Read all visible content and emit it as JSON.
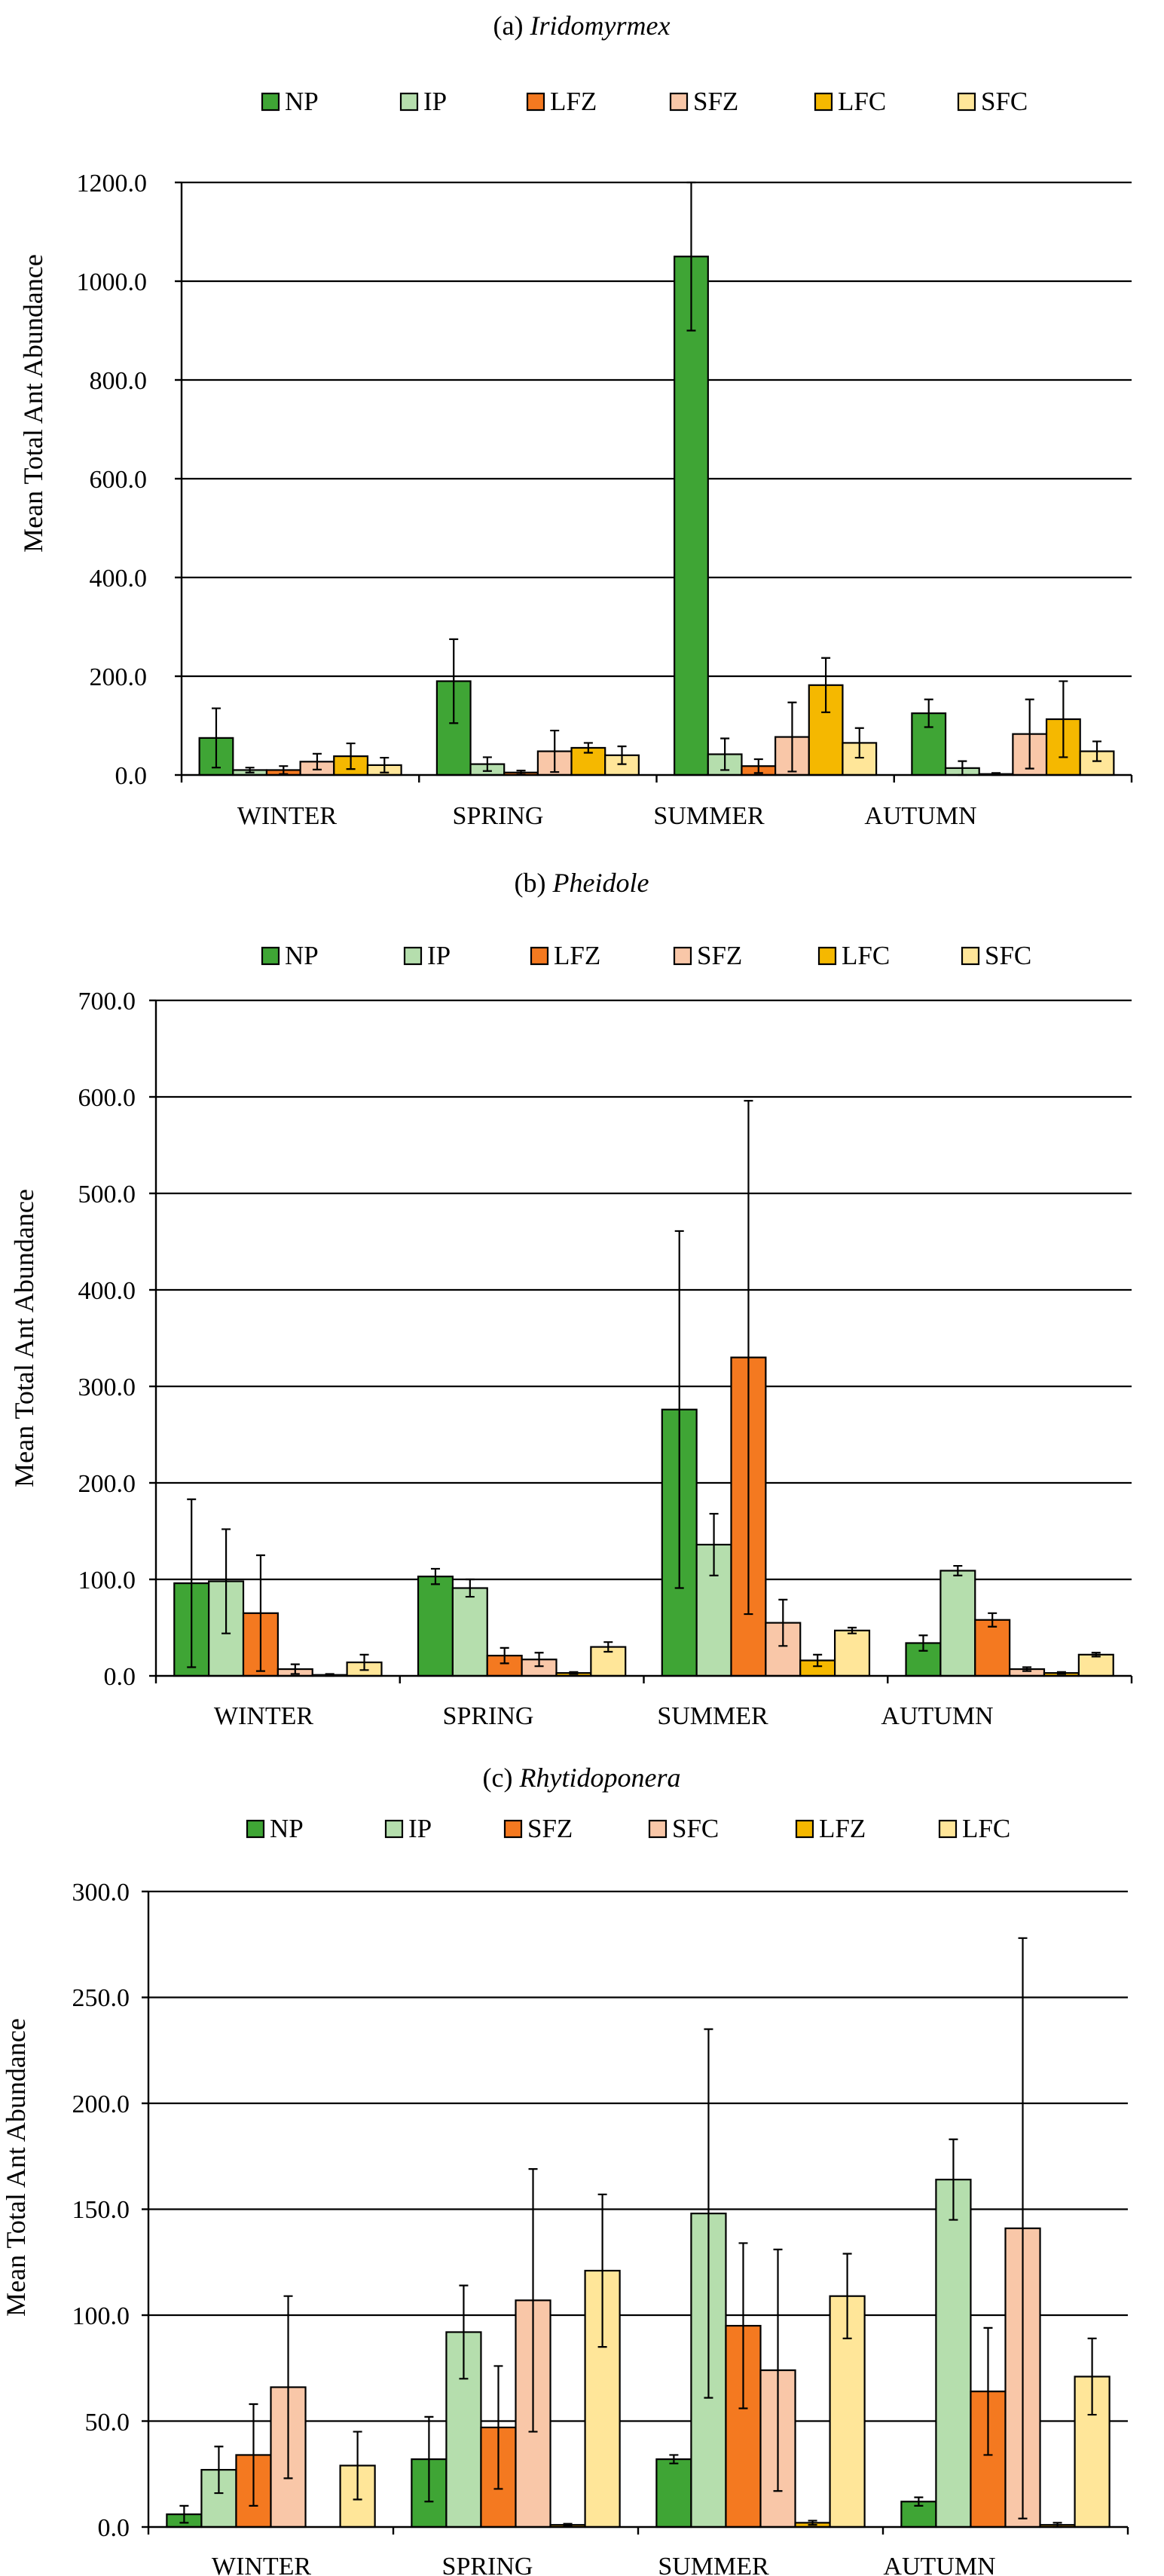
{
  "chart_data": [
    {
      "type": "bar",
      "title_prefix": "(a)",
      "title_name": "Iridomyrmex",
      "title": "(a) Iridomyrmex",
      "ylabel": "Mean Total Ant Abundance",
      "xlabel": "",
      "ylim": [
        0,
        1200
      ],
      "yticks": [
        "0.0",
        "200.0",
        "400.0",
        "600.0",
        "800.0",
        "1000.0",
        "1200.0"
      ],
      "ytick_values": [
        0,
        200,
        400,
        600,
        800,
        1000,
        1200
      ],
      "categories": [
        "WINTER",
        "SPRING",
        "SUMMER",
        "AUTUMN"
      ],
      "grid": true,
      "legend_position": "top",
      "series": [
        {
          "name": "NP",
          "color": "#3FA535",
          "values": [
            75,
            190,
            1050,
            125
          ],
          "errors": [
            60,
            85,
            150,
            28
          ]
        },
        {
          "name": "IP",
          "color": "#B5DEAD",
          "values": [
            10,
            22,
            42,
            14
          ],
          "errors": [
            5,
            14,
            32,
            14
          ]
        },
        {
          "name": "LFZ",
          "color": "#F47920",
          "values": [
            10,
            5,
            18,
            2
          ],
          "errors": [
            8,
            4,
            14,
            2
          ]
        },
        {
          "name": "SFZ",
          "color": "#F9C7A8",
          "values": [
            27,
            48,
            77,
            83
          ],
          "errors": [
            16,
            42,
            70,
            70
          ]
        },
        {
          "name": "LFC",
          "color": "#F5B800",
          "values": [
            38,
            55,
            182,
            113
          ],
          "errors": [
            26,
            10,
            55,
            77
          ]
        },
        {
          "name": "SFC",
          "color": "#FFE699",
          "values": [
            20,
            40,
            65,
            48
          ],
          "errors": [
            15,
            18,
            30,
            20
          ]
        }
      ]
    },
    {
      "type": "bar",
      "title_prefix": "(b)",
      "title_name": "Pheidole",
      "title": "(b) Pheidole",
      "ylabel": "Mean Total Ant Abundance",
      "xlabel": "",
      "ylim": [
        0,
        700
      ],
      "yticks": [
        "0.0",
        "100.0",
        "200.0",
        "300.0",
        "400.0",
        "500.0",
        "600.0",
        "700.0"
      ],
      "ytick_values": [
        0,
        100,
        200,
        300,
        400,
        500,
        600,
        700
      ],
      "categories": [
        "WINTER",
        "SPRING",
        "SUMMER",
        "AUTUMN"
      ],
      "grid": true,
      "legend_position": "top",
      "series": [
        {
          "name": "NP",
          "color": "#3FA535",
          "values": [
            96,
            103,
            276,
            34
          ],
          "errors": [
            87,
            8,
            185,
            8
          ]
        },
        {
          "name": "IP",
          "color": "#B5DEAD",
          "values": [
            98,
            91,
            136,
            109
          ],
          "errors": [
            54,
            9,
            32,
            5
          ]
        },
        {
          "name": "LFZ",
          "color": "#F47920",
          "values": [
            65,
            21,
            330,
            58
          ],
          "errors": [
            60,
            8,
            266,
            7
          ]
        },
        {
          "name": "SFZ",
          "color": "#F9C7A8",
          "values": [
            7,
            17,
            55,
            7
          ],
          "errors": [
            5,
            7,
            24,
            2
          ]
        },
        {
          "name": "LFC",
          "color": "#F5B800",
          "values": [
            1,
            3,
            16,
            3
          ],
          "errors": [
            1,
            1,
            6,
            1
          ]
        },
        {
          "name": "SFC",
          "color": "#FFE699",
          "values": [
            14,
            30,
            47,
            22
          ],
          "errors": [
            8,
            5,
            3,
            2
          ]
        }
      ]
    },
    {
      "type": "bar",
      "title_prefix": "(c)",
      "title_name": "Rhytidoponera",
      "title": "(c) Rhytidoponera",
      "ylabel": "Mean Total Ant Abundance",
      "xlabel": "",
      "ylim": [
        0,
        300
      ],
      "yticks": [
        "0.0",
        "50.0",
        "100.0",
        "150.0",
        "200.0",
        "250.0",
        "300.0"
      ],
      "ytick_values": [
        0,
        50,
        100,
        150,
        200,
        250,
        300
      ],
      "categories": [
        "WINTER",
        "SPRING",
        "SUMMER",
        "AUTUMN"
      ],
      "grid": true,
      "legend_position": "top",
      "series": [
        {
          "name": "NP",
          "color": "#3FA535",
          "values": [
            6,
            32,
            32,
            12
          ],
          "errors": [
            4,
            20,
            2,
            2
          ]
        },
        {
          "name": "IP",
          "color": "#B5DEAD",
          "values": [
            27,
            92,
            148,
            164
          ],
          "errors": [
            11,
            22,
            87,
            19
          ]
        },
        {
          "name": "SFZ",
          "color": "#F47920",
          "values": [
            34,
            47,
            95,
            64
          ],
          "errors": [
            24,
            29,
            39,
            30
          ]
        },
        {
          "name": "SFC",
          "color": "#F9C7A8",
          "values": [
            66,
            107,
            74,
            141
          ],
          "errors": [
            43,
            62,
            57,
            137
          ]
        },
        {
          "name": "LFZ",
          "color": "#F5B800",
          "values": [
            0,
            1,
            2,
            1
          ],
          "errors": [
            0,
            0.5,
            1,
            1
          ]
        },
        {
          "name": "LFC",
          "color": "#FFE699",
          "values": [
            29,
            121,
            109,
            71
          ],
          "errors": [
            16,
            36,
            20,
            18
          ]
        }
      ]
    }
  ]
}
